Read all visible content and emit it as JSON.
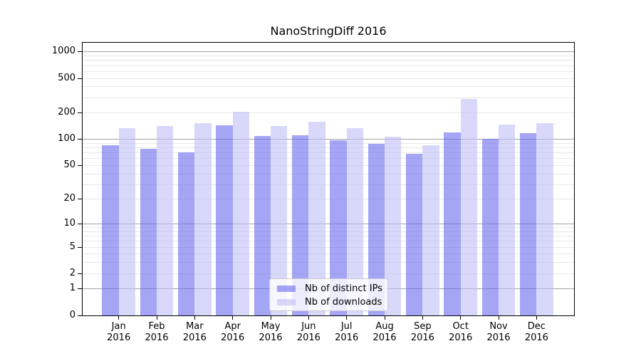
{
  "chart_data": {
    "type": "bar",
    "title": "NanoStringDiff 2016",
    "categories": [
      "Jan",
      "Feb",
      "Mar",
      "Apr",
      "May",
      "Jun",
      "Jul",
      "Aug",
      "Sep",
      "Oct",
      "Nov",
      "Dec"
    ],
    "category_year": "2016",
    "series": [
      {
        "name": "Nb of distinct IPs",
        "color": "rgba(105,105,238,0.6)",
        "values": [
          86,
          78,
          71,
          145,
          109,
          112,
          97,
          89,
          68,
          121,
          101,
          119
        ]
      },
      {
        "name": "Nb of downloads",
        "color": "rgba(190,190,247,0.6)",
        "values": [
          136,
          142,
          154,
          207,
          143,
          160,
          136,
          107,
          85,
          292,
          147,
          153
        ]
      }
    ],
    "y_axis": {
      "scale": "log1p",
      "ylim": [
        0,
        1000
      ],
      "ticks": [
        0,
        1,
        2,
        5,
        10,
        20,
        50,
        100,
        200,
        500,
        1000
      ],
      "major_gridlines": [
        1,
        10,
        100,
        1000
      ],
      "minor_gridlines": [
        2,
        3,
        4,
        5,
        6,
        7,
        8,
        9,
        20,
        30,
        40,
        50,
        60,
        70,
        80,
        90,
        200,
        300,
        400,
        500,
        600,
        700,
        800,
        900
      ]
    },
    "x_axis": {
      "tick_label_lines": 2
    },
    "legend": {
      "position": "inside-bottom-center"
    },
    "colors": {
      "bar_dark": "#a5a5f5",
      "bar_light": "#d8d8fa",
      "major_grid": "#a3a3a3",
      "minor_grid": "#e8e8e8",
      "axis": "#000000"
    },
    "grid": "horizontal"
  }
}
